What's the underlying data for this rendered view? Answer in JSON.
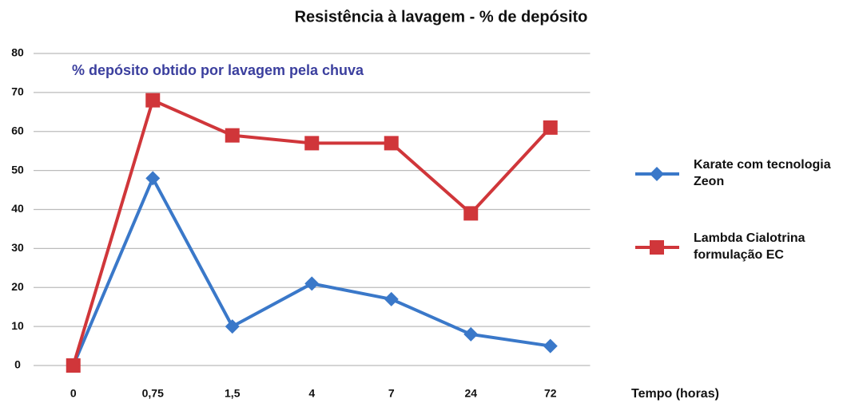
{
  "chart_data": {
    "type": "line",
    "title": "Resistência à lavagem - % de depósito",
    "annotation": "% depósito obtido por lavagem pela chuva",
    "x_label": "Tempo (horas)",
    "categories": [
      "0",
      "0,75",
      "1,5",
      "4",
      "7",
      "24",
      "72"
    ],
    "series": [
      {
        "name": "Karate com tecnologia Zeon",
        "color": "#3a78c9",
        "marker": "diamond",
        "values": [
          0,
          48,
          10,
          21,
          17,
          8,
          5
        ]
      },
      {
        "name": "Lambda Cialotrina formulação EC",
        "color": "#d0363a",
        "marker": "square",
        "values": [
          0,
          68,
          59,
          57,
          57,
          39,
          61
        ]
      }
    ],
    "ylim": [
      0,
      80
    ],
    "yticks": [
      0,
      10,
      20,
      30,
      40,
      50,
      60,
      70,
      80
    ],
    "grid": true,
    "legend": "right"
  }
}
